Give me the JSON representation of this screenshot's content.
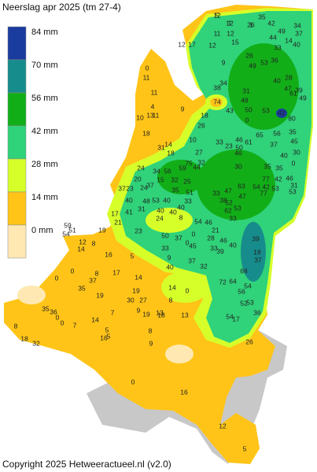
{
  "title": "Neerslag apr 2025 (tm 27-4)",
  "legend": [
    {
      "label": "84 mm",
      "color": "#1b3c9f"
    },
    {
      "label": "70 mm",
      "color": "#178c8c"
    },
    {
      "label": "56 mm",
      "color": "#12ae18"
    },
    {
      "label": "42 mm",
      "color": "#30d27a"
    },
    {
      "label": "28 mm",
      "color": "#d6ff2a"
    },
    {
      "label": "14 mm",
      "color": "#ffc417"
    },
    {
      "label": "0 mm",
      "color": "#ffe8b2"
    }
  ],
  "stations": {
    "values": [
      12,
      12,
      26,
      35,
      42,
      49,
      34,
      37,
      40,
      44,
      33,
      14,
      12,
      11,
      15,
      12,
      17,
      12,
      9,
      26,
      49,
      53,
      36,
      40,
      28,
      39,
      61,
      49,
      47,
      34,
      38,
      31,
      48,
      43,
      50,
      53,
      42,
      80,
      74,
      0,
      0,
      11,
      4,
      13,
      11,
      10,
      11,
      9,
      18,
      26,
      18,
      31,
      14,
      18,
      10,
      27,
      33,
      23,
      46,
      46,
      50,
      61,
      65,
      56,
      45,
      37,
      30,
      0,
      35,
      40,
      30,
      35,
      35,
      42,
      46,
      31,
      42,
      77,
      53,
      53,
      77,
      54,
      63,
      47,
      33,
      47,
      38,
      53,
      62,
      33,
      52,
      75,
      44,
      32,
      59,
      56,
      34,
      24,
      20,
      24,
      23,
      37,
      37,
      15,
      32,
      25,
      35,
      51,
      33,
      53,
      31,
      48,
      40,
      40,
      40,
      40,
      40,
      41,
      17,
      21,
      19,
      23,
      24,
      8,
      54,
      0,
      0,
      37,
      50,
      46,
      21,
      28,
      46,
      40,
      39,
      45,
      33,
      33,
      40,
      37,
      32,
      39,
      18,
      37,
      68,
      72,
      64,
      56,
      52,
      17,
      54,
      53,
      54,
      36,
      59,
      51,
      54,
      12,
      8,
      14,
      16,
      8,
      5,
      14,
      17,
      37,
      0,
      0,
      35,
      14,
      0,
      9,
      19,
      27,
      30,
      9,
      19,
      13,
      8,
      18,
      13,
      19,
      35,
      36,
      0,
      0,
      7,
      14,
      7,
      5,
      16,
      5,
      8,
      9,
      8,
      18,
      32,
      26,
      0,
      16,
      5,
      12,
      5,
      1,
      1
    ]
  },
  "copyright": "Copyright 2025 Hetweeractueel.nl (v2.0)"
}
